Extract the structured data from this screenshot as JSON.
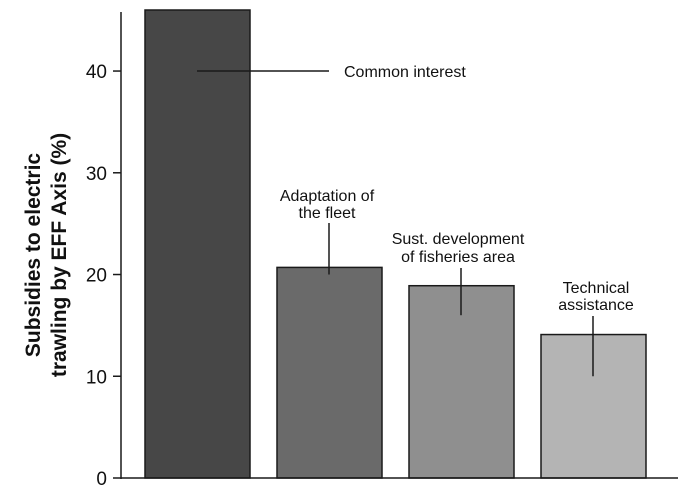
{
  "chart_data": {
    "type": "bar",
    "title": "",
    "xlabel": "",
    "ylabel_lines": [
      "Subsidies to electric",
      "trawling by EFF Axis (%)"
    ],
    "ylim": [
      0,
      46
    ],
    "yticks": [
      0,
      10,
      20,
      30,
      40
    ],
    "grid": false,
    "legend": "none",
    "categories": [
      "Common interest",
      "Adaptation of the fleet",
      "Sust. development of fisheries area",
      "Technical assistance"
    ],
    "values": [
      46.3,
      20.7,
      18.9,
      14.1
    ],
    "colors": [
      "#474747",
      "#6a6a6a",
      "#8f8f8f",
      "#b4b4b4"
    ],
    "annotations": [
      {
        "category": "Common interest",
        "lines": [
          "Common interest"
        ],
        "leader_value": 40
      },
      {
        "category": "Adaptation of the fleet",
        "lines": [
          "Adaptation of",
          "the fleet"
        ],
        "leader_value": 20
      },
      {
        "category": "Sust. development of fisheries area",
        "lines": [
          "Sust. development",
          "of fisheries area"
        ],
        "leader_value": 16
      },
      {
        "category": "Technical assistance",
        "lines": [
          "Technical",
          "assistance"
        ],
        "leader_value": 10
      }
    ]
  }
}
